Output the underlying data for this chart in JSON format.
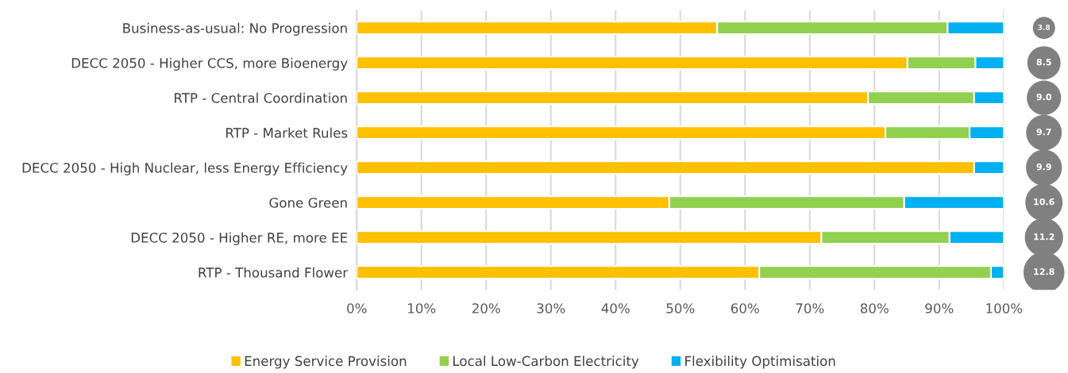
{
  "chart_data": [
    {
      "type": "bar",
      "orientation": "horizontal",
      "stacked": true,
      "categories": [
        "Business-as-usual: No Progression",
        "DECC 2050 - Higher CCS, more Bioenergy",
        "RTP - Central Coordination",
        "RTP - Market Rules",
        "DECC 2050 - High Nuclear, less Energy Efficiency",
        "Gone Green",
        "DECC 2050 - Higher RE, more EE",
        "RTP - Thousand Flower"
      ],
      "series": [
        {
          "name": "Energy Service Provision",
          "color": "#ffc000",
          "values": [
            55.7,
            85.1,
            79.0,
            81.7,
            95.4,
            48.3,
            71.8,
            62.2
          ]
        },
        {
          "name": "Local Low-Carbon Electricity",
          "color": "#92d050",
          "values": [
            35.6,
            10.5,
            16.4,
            13.0,
            0,
            36.3,
            19.8,
            35.8
          ]
        },
        {
          "name": "Flexibility Optimisation",
          "color": "#00b0f0",
          "values": [
            8.7,
            4.4,
            4.6,
            5.3,
            4.6,
            15.4,
            8.4,
            2.0
          ]
        }
      ],
      "xlim": [
        0,
        100
      ],
      "xticks": [
        {
          "value": 0,
          "label": "0%"
        },
        {
          "value": 10,
          "label": "10%"
        },
        {
          "value": 20,
          "label": "20%"
        },
        {
          "value": 30,
          "label": "30%"
        },
        {
          "value": 40,
          "label": "40%"
        },
        {
          "value": 50,
          "label": "50%"
        },
        {
          "value": 60,
          "label": "60%"
        },
        {
          "value": 70,
          "label": "70%"
        },
        {
          "value": 80,
          "label": "80%"
        },
        {
          "value": 90,
          "label": "90%"
        },
        {
          "value": 100,
          "label": "100%"
        }
      ],
      "grid": "x",
      "legend": "bottom"
    },
    {
      "type": "other",
      "values": [
        3.8,
        8.5,
        9.0,
        9.7,
        9.9,
        10.6,
        11.2,
        12.8
      ],
      "value_labels": [
        "3.8",
        "8.5",
        "9.0",
        "9.7",
        "9.9",
        "10.6",
        "11.2",
        "12.8"
      ],
      "color": "#808080"
    }
  ]
}
